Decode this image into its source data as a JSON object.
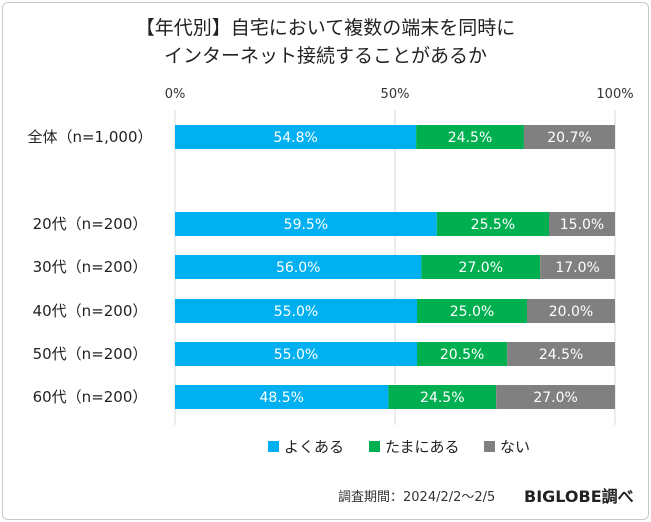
{
  "chart_data": {
    "type": "bar",
    "orientation": "horizontal",
    "stacked": true,
    "title_lines": [
      "【年代別】自宅において複数の端末を同時に",
      "インターネット接続することがあるか"
    ],
    "tick_labels": [
      "0%",
      "50%",
      "100%"
    ],
    "xlim": [
      0,
      100
    ],
    "categories": [
      "全体（n=1,000）",
      "20代（n=200）",
      "30代（n=200）",
      "40代（n=200）",
      "50代（n=200）",
      "60代（n=200）"
    ],
    "series": [
      {
        "name": "よくある",
        "color": "#00b0f0",
        "values": [
          54.8,
          59.5,
          56.0,
          55.0,
          55.0,
          48.5
        ],
        "labels": [
          "54.8%",
          "59.5%",
          "56.0%",
          "55.0%",
          "55.0%",
          "48.5%"
        ]
      },
      {
        "name": "たまにある",
        "color": "#00b050",
        "values": [
          24.5,
          25.5,
          27.0,
          25.0,
          20.5,
          24.5
        ],
        "labels": [
          "24.5%",
          "25.5%",
          "27.0%",
          "25.0%",
          "20.5%",
          "24.5%"
        ]
      },
      {
        "name": "ない",
        "color": "#808080",
        "values": [
          20.7,
          15.0,
          17.0,
          20.0,
          24.5,
          27.0
        ],
        "labels": [
          "20.7%",
          "15.0%",
          "17.0%",
          "20.0%",
          "24.5%",
          "27.0%"
        ]
      }
    ],
    "legend_position": "bottom",
    "gridlines": true
  },
  "footer": {
    "period": "調査期間：2024/2/2～2/5",
    "brand": "BIGLOBE調べ"
  }
}
